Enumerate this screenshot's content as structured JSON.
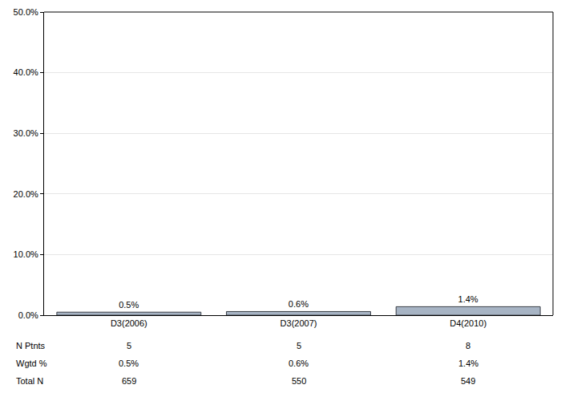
{
  "chart_data": {
    "type": "bar",
    "categories": [
      "D3(2006)",
      "D3(2007)",
      "D4(2010)"
    ],
    "values": [
      0.5,
      0.6,
      1.4
    ],
    "value_labels": [
      "0.5%",
      "0.6%",
      "1.4%"
    ],
    "data_labels": true,
    "color": "#a7b4c4",
    "ylim": [
      0,
      50
    ],
    "yticks": [
      {
        "value": 0,
        "label": "0.0%"
      },
      {
        "value": 10,
        "label": "10.0%"
      },
      {
        "value": 20,
        "label": "20.0%"
      },
      {
        "value": 30,
        "label": "30.0%"
      },
      {
        "value": 40,
        "label": "40.0%"
      },
      {
        "value": 50,
        "label": "50.0%"
      }
    ],
    "grid": true,
    "table": {
      "rows": [
        {
          "label": "N Ptnts",
          "cells": [
            "5",
            "5",
            "8"
          ]
        },
        {
          "label": "Wgtd %",
          "cells": [
            "0.5%",
            "0.6%",
            "1.4%"
          ]
        },
        {
          "label": "Total N",
          "cells": [
            "659",
            "550",
            "549"
          ]
        }
      ]
    }
  }
}
